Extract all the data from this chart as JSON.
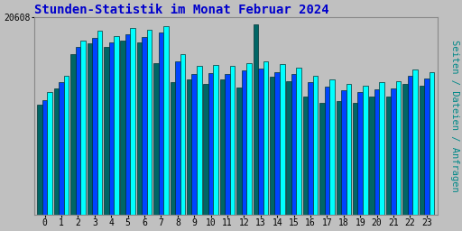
{
  "title": "Stunden-Statistik im Monat Februar 2024",
  "title_color": "#0000cc",
  "title_fontsize": 10,
  "ylabel": "Seiten / Dateien / Anfragen",
  "ylabel_color": "#008888",
  "ylabel_fontsize": 7.5,
  "ymax_label": "20608",
  "background_color": "#c0c0c0",
  "plot_bg_color": "#c0c0c0",
  "hours": [
    0,
    1,
    2,
    3,
    4,
    5,
    6,
    7,
    8,
    9,
    10,
    11,
    12,
    13,
    14,
    15,
    16,
    17,
    18,
    19,
    20,
    21,
    22,
    23
  ],
  "seiten": [
    12800,
    14500,
    18200,
    19200,
    18700,
    19500,
    19300,
    19700,
    16800,
    15500,
    15600,
    15500,
    15800,
    16000,
    15700,
    15400,
    14500,
    14100,
    13700,
    13500,
    13800,
    13900,
    15200,
    14900
  ],
  "dateien": [
    12000,
    13800,
    17500,
    18500,
    18000,
    18800,
    18600,
    19000,
    16000,
    14700,
    14800,
    14700,
    15100,
    15300,
    14900,
    14700,
    13800,
    13400,
    13000,
    12800,
    13100,
    13200,
    14500,
    14200
  ],
  "anfragen": [
    11500,
    13200,
    16800,
    17900,
    17500,
    18200,
    18000,
    15800,
    13800,
    14100,
    13700,
    14100,
    13300,
    19900,
    14400,
    13900,
    12300,
    11700,
    11900,
    11700,
    12300,
    12300,
    13700,
    13500
  ],
  "color_seiten": "#00ffff",
  "color_dateien": "#0044ff",
  "color_anfragen": "#006666",
  "edge_color": "#003333",
  "bar_width": 0.3,
  "grid_color": "#aaaaaa",
  "ymax": 20608,
  "ytick_positions": [
    20608
  ],
  "border_color": "#888888"
}
